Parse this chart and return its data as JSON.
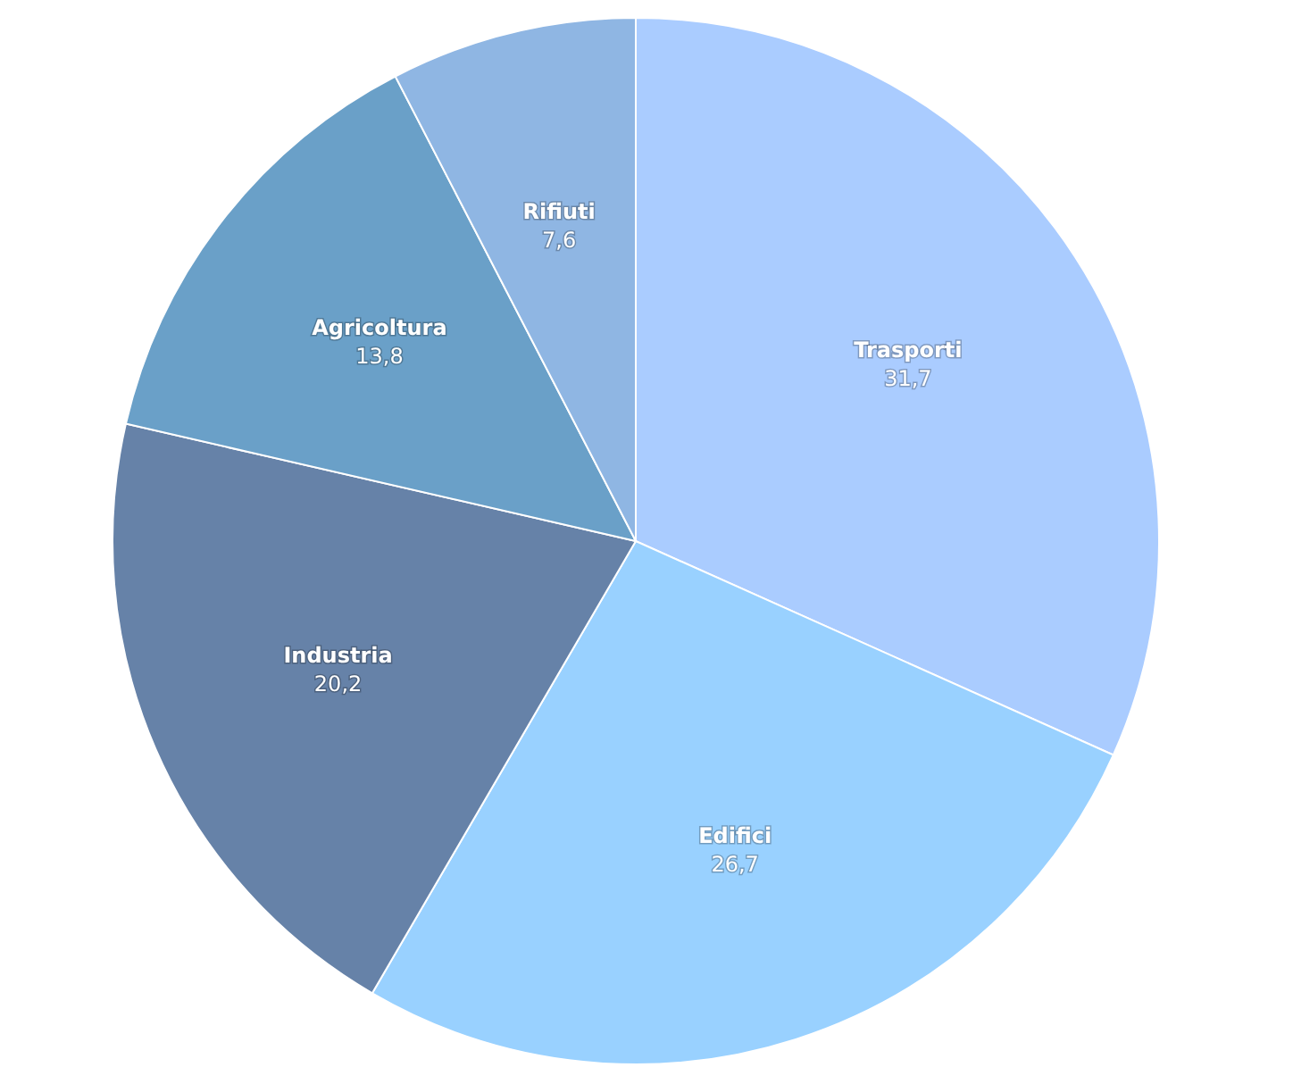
{
  "chart_data": {
    "type": "pie",
    "categories": [
      "Trasporti",
      "Edifici",
      "Industria",
      "Agricoltura",
      "Rifiuti"
    ],
    "values": [
      31.7,
      26.7,
      20.2,
      13.8,
      7.6
    ],
    "colors": [
      "#aaccff",
      "#99d1ff",
      "#6682a8",
      "#6aa0c8",
      "#8fb6e3"
    ],
    "value_labels": [
      "31,7",
      "26,7",
      "20,2",
      "13,8",
      "7,6"
    ],
    "legend": false
  }
}
